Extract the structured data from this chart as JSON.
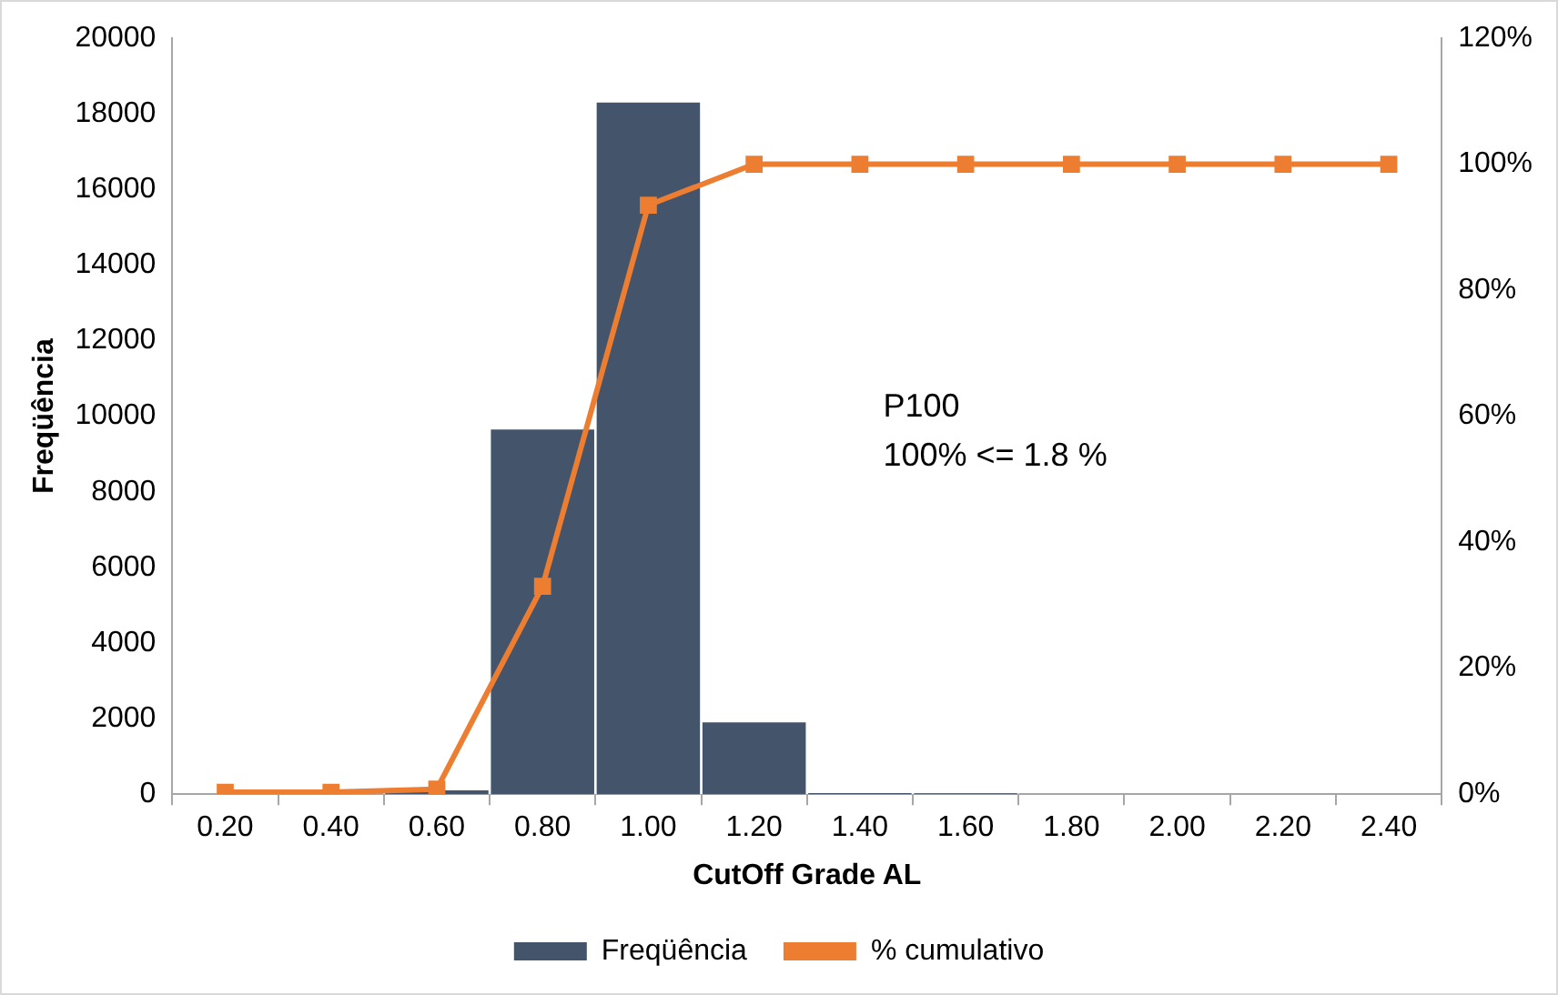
{
  "chart_data": {
    "type": "bar",
    "xlabel": "CutOff Grade AL",
    "ylabel": "Freqüência",
    "categories": [
      "0.20",
      "0.40",
      "0.60",
      "0.80",
      "1.00",
      "1.20",
      "1.40",
      "1.60",
      "1.80",
      "2.00",
      "2.20",
      "2.40"
    ],
    "series": [
      {
        "name": "Freqüência",
        "color": "#44546a",
        "values": [
          0,
          0,
          100,
          9650,
          18300,
          1900,
          30,
          20,
          0,
          0,
          0,
          0
        ]
      },
      {
        "name": "% cumulativo",
        "type": "line",
        "axis": "y2",
        "color": "#ed7d31",
        "marker": "square",
        "values": [
          0.3,
          0.3,
          0.8,
          33,
          93.5,
          100,
          100,
          100,
          100,
          100,
          100,
          100
        ]
      }
    ],
    "ylim": [
      0,
      20000
    ],
    "yticks": [
      0,
      2000,
      4000,
      6000,
      8000,
      10000,
      12000,
      14000,
      16000,
      18000,
      20000
    ],
    "y2lim": [
      0,
      120
    ],
    "y2ticks": [
      {
        "value": 0,
        "label": "0%"
      },
      {
        "value": 20,
        "label": "20%"
      },
      {
        "value": 40,
        "label": "40%"
      },
      {
        "value": 60,
        "label": "60%"
      },
      {
        "value": 80,
        "label": "80%"
      },
      {
        "value": 100,
        "label": "100%"
      },
      {
        "value": 120,
        "label": "120%"
      }
    ],
    "annotations": [
      "P100",
      "100% <= 1.8 %"
    ],
    "grid": false,
    "legend": "bottom"
  }
}
